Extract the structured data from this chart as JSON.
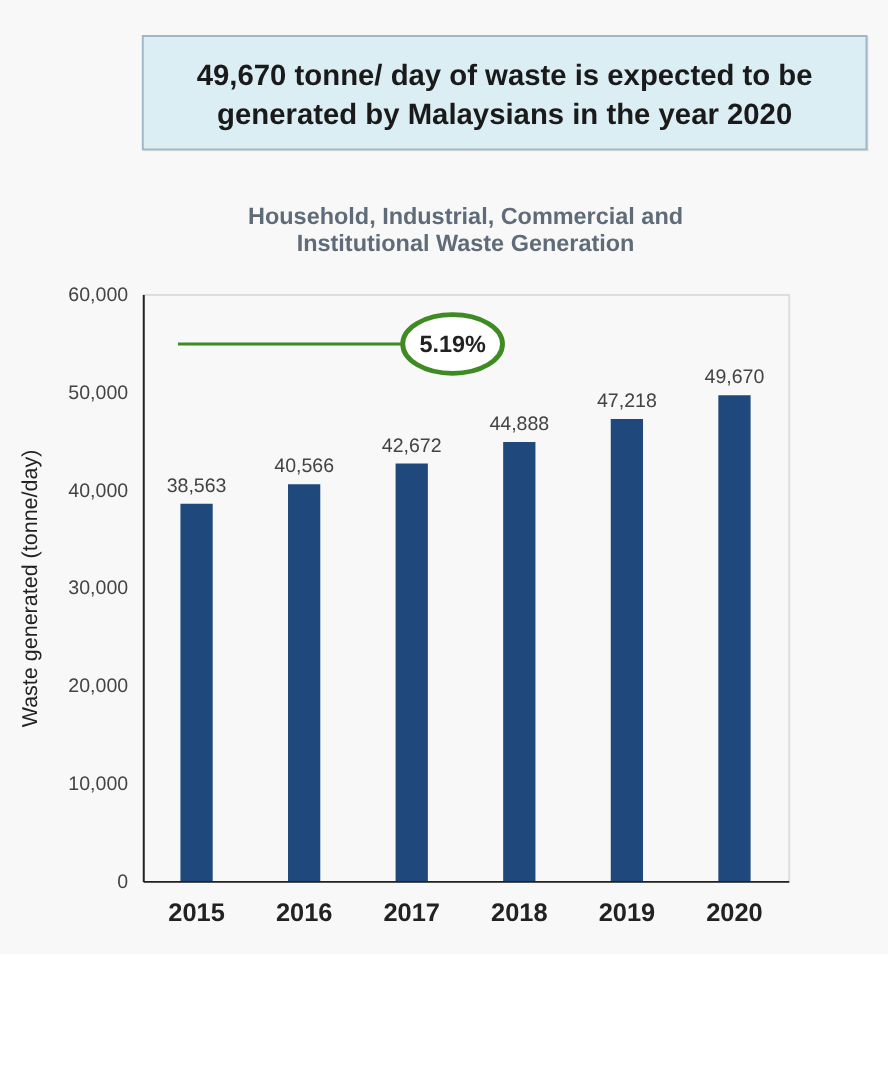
{
  "chart_data": {
    "type": "bar",
    "title": "49,670 tonne/ day of waste is expected to be generated by  Malaysians in the year 2020",
    "subtitle": "Household, Industrial, Commercial and Institutional  Waste Generation",
    "ylabel": "Waste generated (tonne/day)",
    "categories": [
      "2015",
      "2016",
      "2017",
      "2018",
      "2019",
      "2020"
    ],
    "values": [
      38563,
      40566,
      42672,
      44888,
      47218,
      49670
    ],
    "color": "#1f497d",
    "ylim": [
      0,
      60000
    ],
    "yticks": [
      0,
      {
        "value": 10000,
        "label": "10,000"
      },
      {
        "value": 20000,
        "label": "20,000"
      },
      {
        "value": 30000,
        "label": "30,000"
      },
      {
        "value": 40000,
        "label": "40,000"
      },
      {
        "value": 50000,
        "label": "50,000"
      },
      {
        "value": 60000,
        "label": "60,000"
      }
    ],
    "value_labels": [
      "38,563",
      "40,566",
      "42,672",
      "44,888",
      "47,218",
      "49,670"
    ],
    "grid": false,
    "annotations": [
      "5.19%"
    ]
  }
}
